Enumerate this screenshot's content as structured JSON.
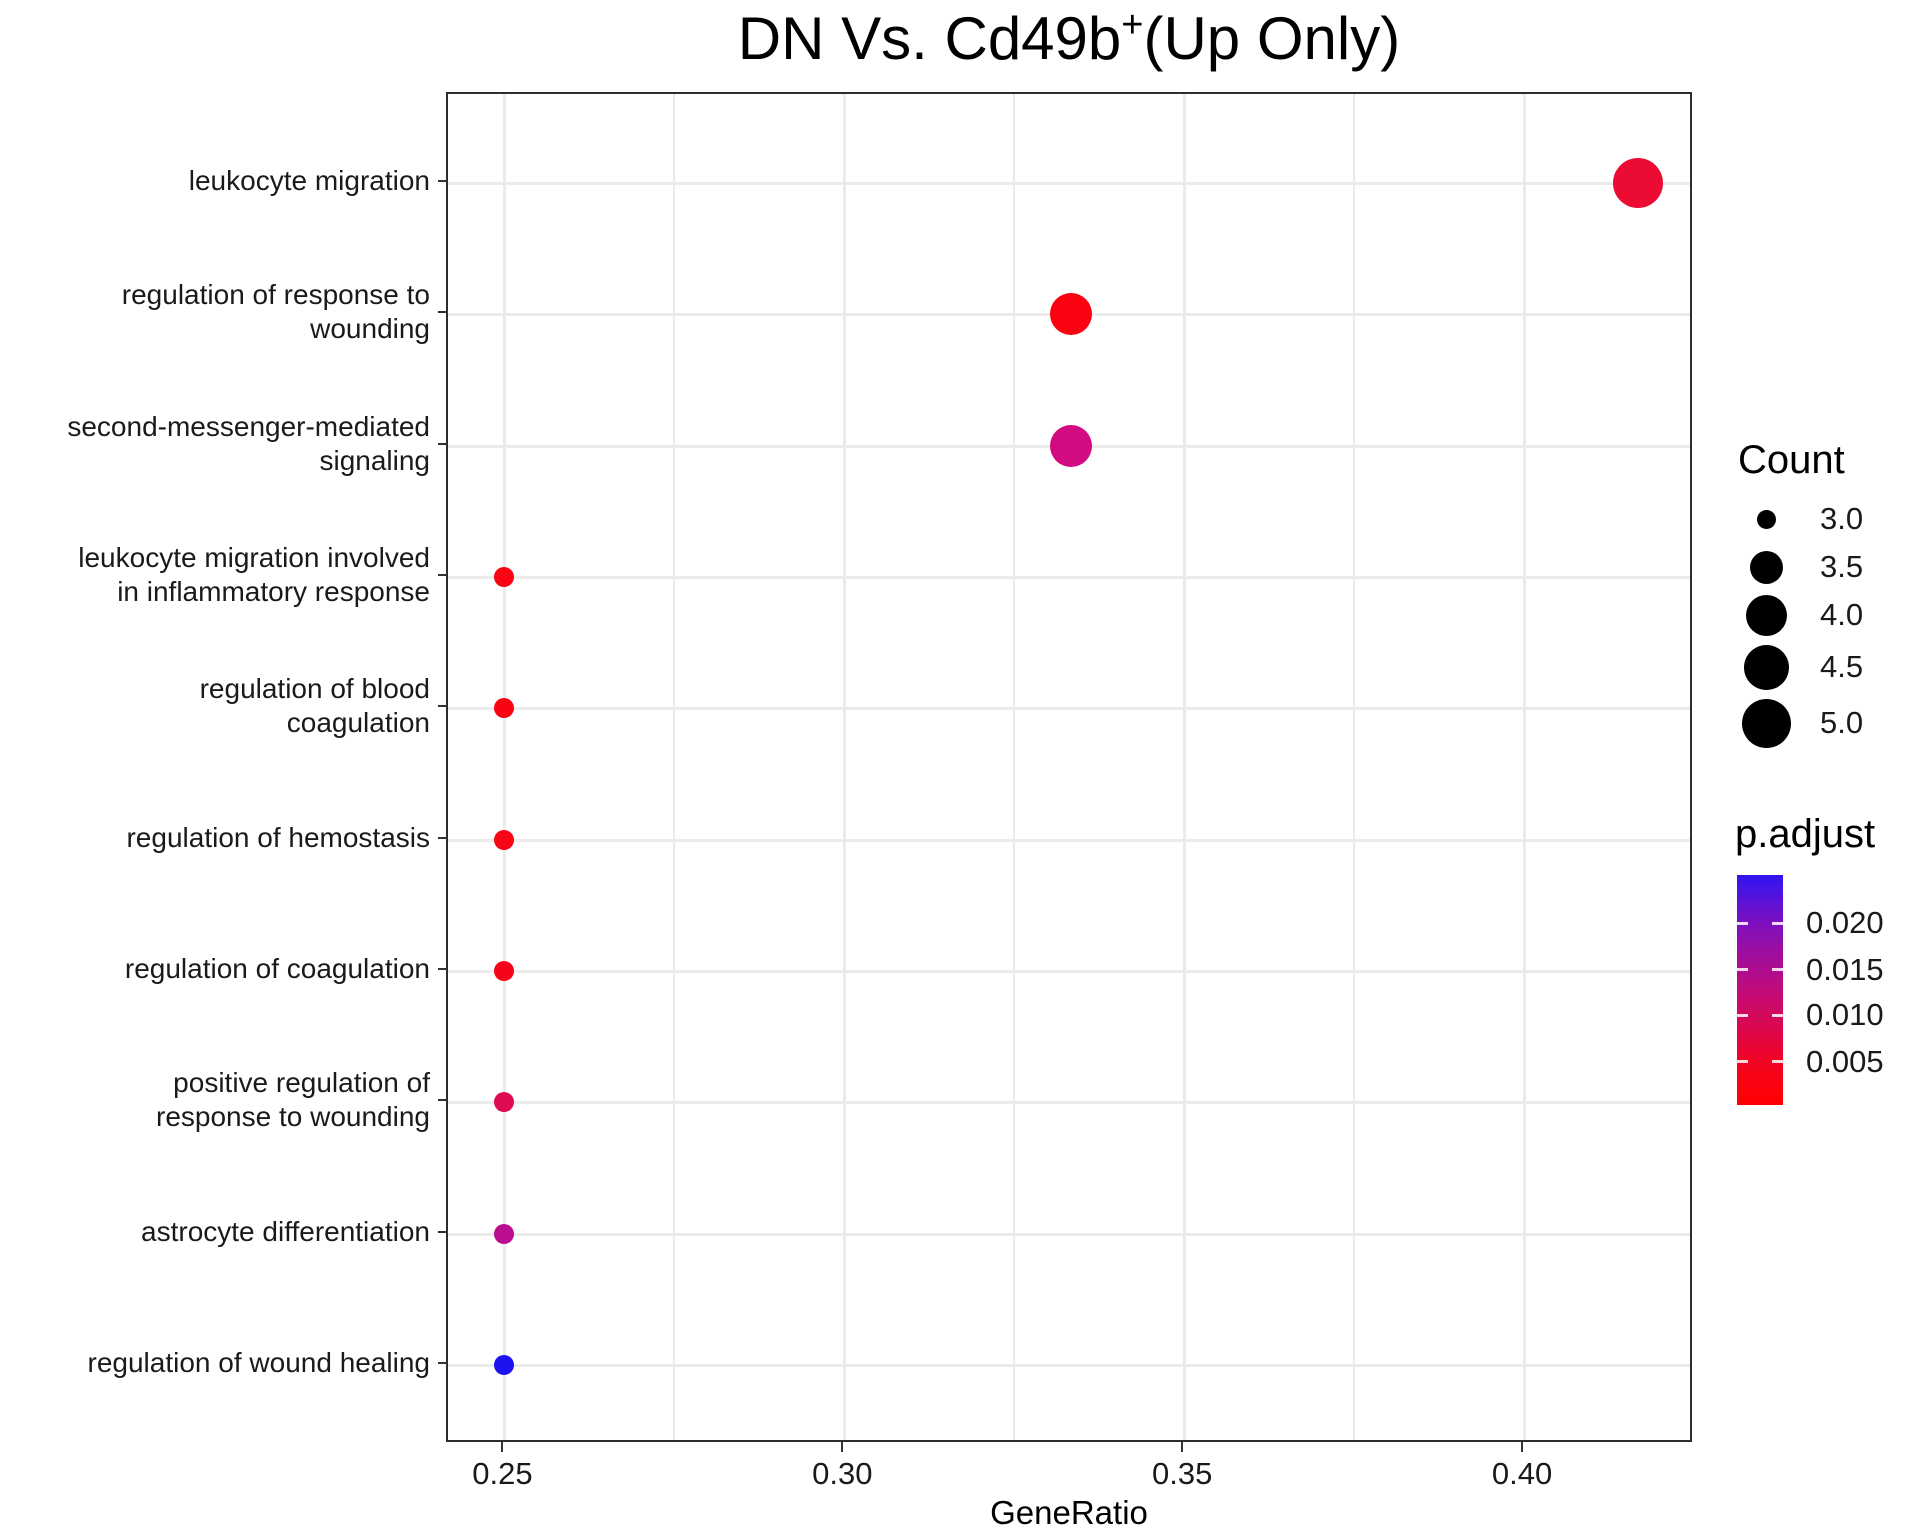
{
  "title": {
    "text_prefix": "DN Vs. Cd49b",
    "superscript": "+",
    "text_suffix": "(Up Only)",
    "full": "DN Vs. Cd49b+(Up Only)"
  },
  "x_axis": {
    "label": "GeneRatio",
    "tick_labels": [
      "0.25",
      "0.30",
      "0.35",
      "0.40"
    ]
  },
  "y_axis": {
    "tick_labels": [
      "leukocyte migration",
      "regulation of response to wounding",
      "second-messenger-mediated signaling",
      "leukocyte migration involved in inflammatory response",
      "regulation of blood coagulation",
      "regulation of hemostasis",
      "regulation of coagulation",
      "positive regulation of response to wounding",
      "astrocyte differentiation",
      "regulation of wound healing"
    ]
  },
  "legend_count": {
    "title": "Count",
    "entries": [
      {
        "label": "3.0",
        "diameter": 19
      },
      {
        "label": "3.5",
        "diameter": 33
      },
      {
        "label": "4.0",
        "diameter": 41
      },
      {
        "label": "4.5",
        "diameter": 45
      },
      {
        "label": "5.0",
        "diameter": 49
      }
    ]
  },
  "legend_padjust": {
    "title": "p.adjust",
    "tick_labels": [
      "0.020",
      "0.015",
      "0.010",
      "0.005"
    ]
  },
  "chart_data": {
    "type": "scatter",
    "title": "DN Vs. Cd49b+(Up Only)",
    "xlabel": "GeneRatio",
    "ylabel": "",
    "x_domain": [
      0.2417,
      0.425
    ],
    "x_ticks": [
      0.25,
      0.3,
      0.35,
      0.4
    ],
    "x_minor_ticks": [
      0.275,
      0.325,
      0.375
    ],
    "grid": true,
    "legend_position": "right",
    "size_legend_values": [
      3.0,
      3.5,
      4.0,
      4.5,
      5.0
    ],
    "color_scale": {
      "name": "p.adjust",
      "low_value_color": "#FF0000",
      "high_value_color": "#1D13F0",
      "tick_values": [
        0.02,
        0.015,
        0.01,
        0.005
      ]
    },
    "points": [
      {
        "term": "leukocyte migration",
        "label_display": "leukocyte migration",
        "gene_ratio": 0.4167,
        "count": 5,
        "color": "#EB0B33"
      },
      {
        "term": "regulation of response to wounding",
        "label_display": "regulation of response to\nwounding",
        "gene_ratio": 0.3333,
        "count": 4,
        "color": "#FA020F"
      },
      {
        "term": "second-messenger-mediated signaling",
        "label_display": "second-messenger-mediated\nsignaling",
        "gene_ratio": 0.3333,
        "count": 4,
        "color": "#D20C80"
      },
      {
        "term": "leukocyte migration involved in inflammatory response",
        "label_display": "leukocyte migration involved\nin inflammatory response",
        "gene_ratio": 0.25,
        "count": 3,
        "color": "#FA0313"
      },
      {
        "term": "regulation of blood coagulation",
        "label_display": "regulation of blood\ncoagulation",
        "gene_ratio": 0.25,
        "count": 3,
        "color": "#FA0313"
      },
      {
        "term": "regulation of hemostasis",
        "label_display": "regulation of hemostasis",
        "gene_ratio": 0.25,
        "count": 3,
        "color": "#F90317"
      },
      {
        "term": "regulation of coagulation",
        "label_display": "regulation of coagulation",
        "gene_ratio": 0.25,
        "count": 3,
        "color": "#F8041A"
      },
      {
        "term": "positive regulation of response to wounding",
        "label_display": "positive regulation of\nresponse to wounding",
        "gene_ratio": 0.25,
        "count": 3,
        "color": "#DF0C55"
      },
      {
        "term": "astrocyte differentiation",
        "label_display": "astrocyte differentiation",
        "gene_ratio": 0.25,
        "count": 3,
        "color": "#BA0D90"
      },
      {
        "term": "regulation of wound healing",
        "label_display": "regulation of wound healing",
        "gene_ratio": 0.25,
        "count": 3,
        "color": "#1D13F0"
      }
    ]
  },
  "colors": {
    "grid": "#EBEBEB",
    "panel_border": "#2E2E2E",
    "legend_dot": "#000000",
    "gradient_stops_top_to_bottom": [
      "#2D15F0",
      "#5B12D8",
      "#8010BB",
      "#9D0EA0",
      "#B50C87",
      "#CA0A6B",
      "#DC074D",
      "#ED052E",
      "#F90213",
      "#FF0000"
    ]
  }
}
